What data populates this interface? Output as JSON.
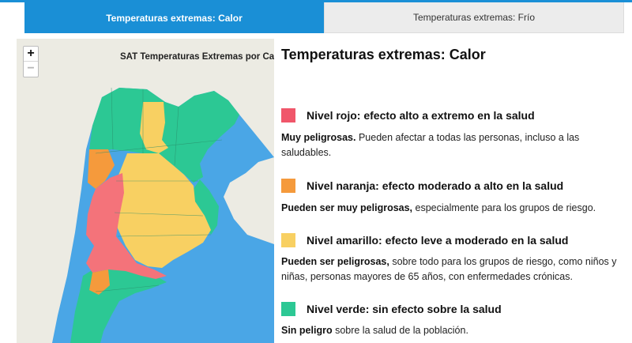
{
  "tabs": [
    {
      "label": "Temperaturas extremas: Calor",
      "active": true
    },
    {
      "label": "Temperaturas extremas: Frío",
      "active": false
    }
  ],
  "map": {
    "title": "SAT Temperaturas Extremas por Calor",
    "zoom_in": "+",
    "zoom_out": "−",
    "colors": {
      "ocean": "#4aa6e6",
      "land": "#ecebe3",
      "red": "#f4737a",
      "orange": "#f59a3c",
      "yellow": "#f8d062",
      "green": "#2cc894"
    }
  },
  "main": {
    "title": "Temperaturas extremas: Calor",
    "levels": [
      {
        "color": "#f0566a",
        "title": "Nivel rojo: efecto alto a extremo en la salud",
        "bold": "Muy peligrosas.",
        "text": " Pueden afectar a todas las personas, incluso a las saludables."
      },
      {
        "color": "#f59a3c",
        "title": "Nivel naranja: efecto moderado a alto en la salud",
        "bold": "Pueden ser muy peligrosas,",
        "text": " especialmente para los grupos de riesgo."
      },
      {
        "color": "#f8d062",
        "title": "Nivel amarillo: efecto leve a moderado en la salud",
        "bold": "Pueden ser peligrosas,",
        "text": " sobre todo para los grupos de riesgo, como niños y niñas, personas mayores de 65 años, con enfermedades crónicas."
      },
      {
        "color": "#2cc894",
        "title": "Nivel verde: sin efecto sobre la salud",
        "bold": "Sin peligro",
        "text": " sobre la salud de la población."
      }
    ]
  }
}
